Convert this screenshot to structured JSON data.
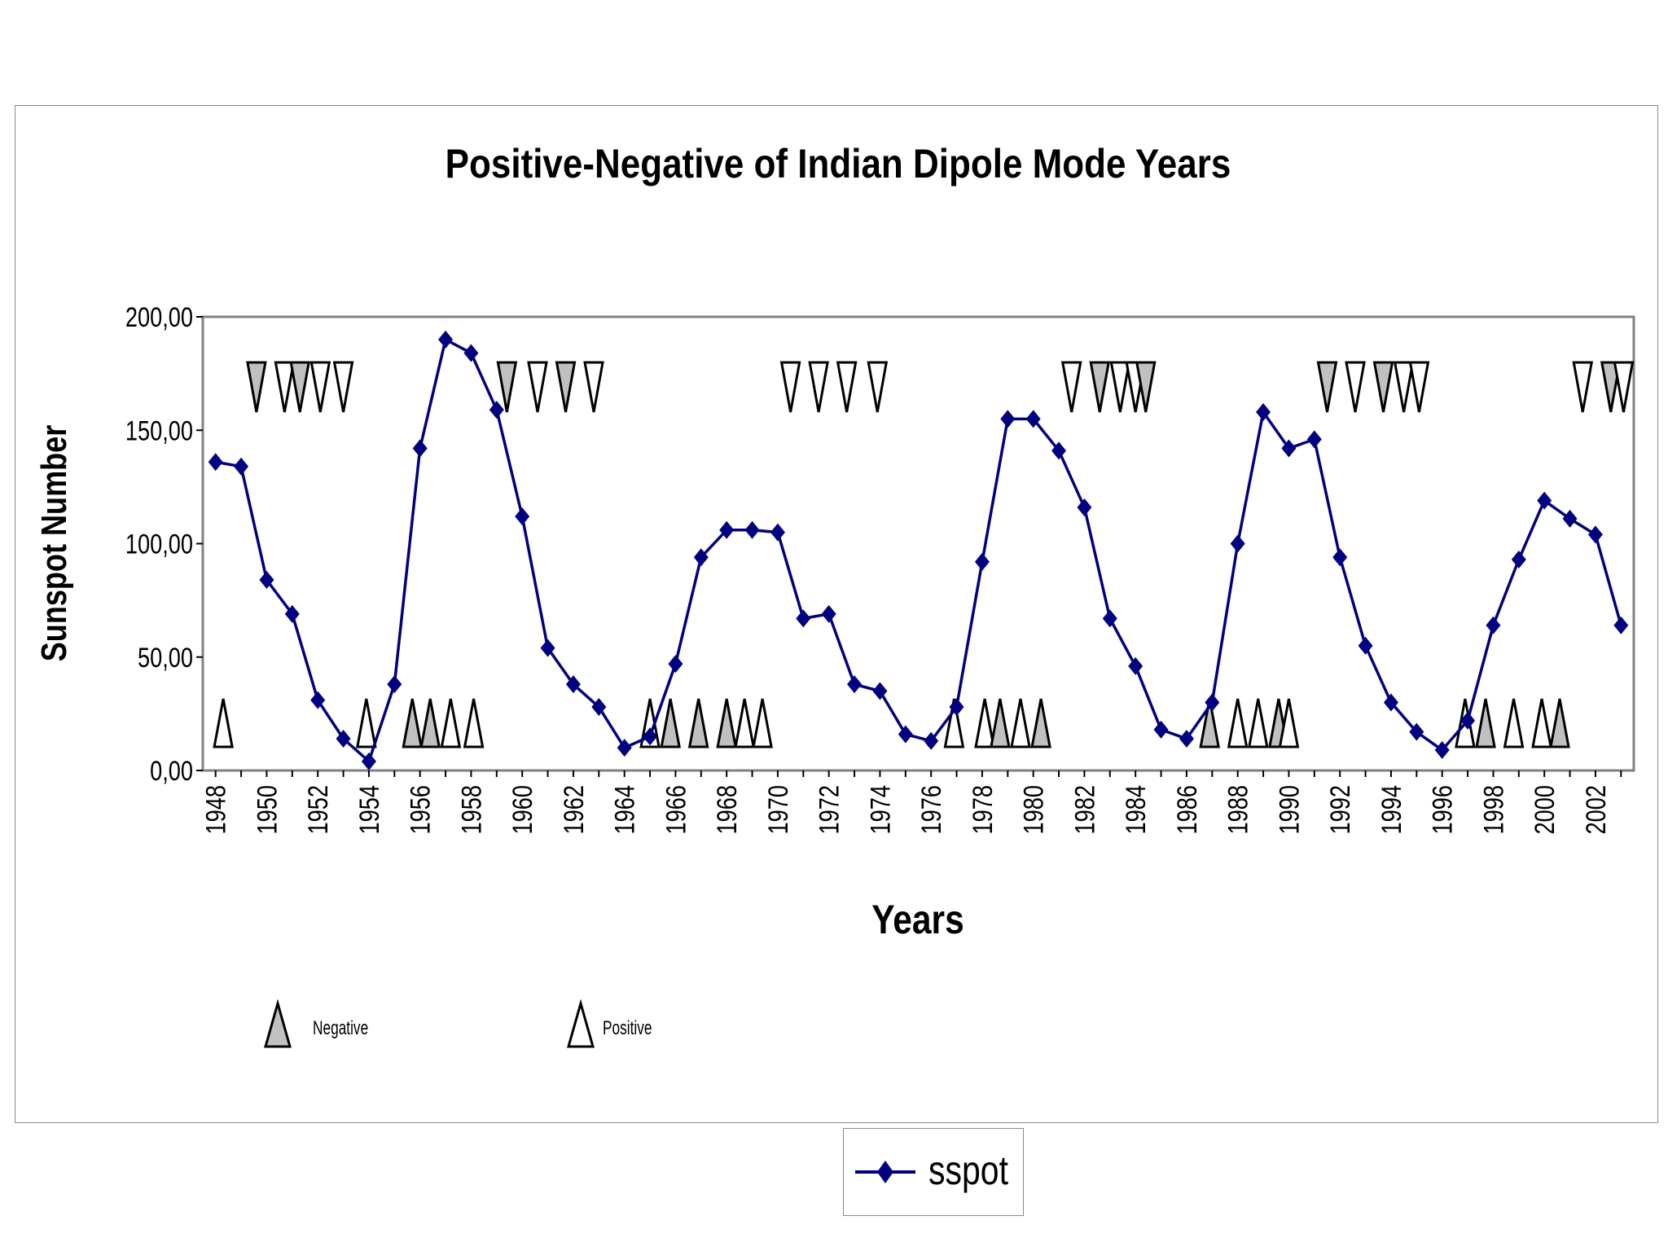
{
  "chart_data": {
    "type": "line",
    "title": "Positive-Negative of Indian Dipole Mode Years",
    "xlabel": "Years",
    "ylabel": "Sunspot Number",
    "ylim": [
      0,
      200
    ],
    "y_ticks": [
      "0,00",
      "50,00",
      "100,00",
      "150,00",
      "200,00"
    ],
    "x_ticks": [
      "1948",
      "1950",
      "1952",
      "1954",
      "1956",
      "1958",
      "1960",
      "1962",
      "1964",
      "1966",
      "1968",
      "1970",
      "1972",
      "1974",
      "1976",
      "1978",
      "1980",
      "1982",
      "1984",
      "1986",
      "1988",
      "1990",
      "1992",
      "1994",
      "1996",
      "1998",
      "2000",
      "2002"
    ],
    "x": [
      1948,
      1949,
      1950,
      1951,
      1952,
      1953,
      1954,
      1955,
      1956,
      1957,
      1958,
      1959,
      1960,
      1961,
      1962,
      1963,
      1964,
      1965,
      1966,
      1967,
      1968,
      1969,
      1970,
      1971,
      1972,
      1973,
      1974,
      1975,
      1976,
      1977,
      1978,
      1979,
      1980,
      1981,
      1982,
      1983,
      1984,
      1985,
      1986,
      1987,
      1988,
      1989,
      1990,
      1991,
      1992,
      1993,
      1994,
      1995,
      1996,
      1997,
      1998,
      1999,
      2000,
      2001,
      2002,
      2003
    ],
    "series": [
      {
        "name": "sspot",
        "color": "#000080",
        "values": [
          136,
          134,
          84,
          69,
          31,
          14,
          4,
          38,
          142,
          190,
          184,
          159,
          112,
          54,
          38,
          28,
          10,
          15,
          47,
          94,
          106,
          106,
          105,
          67,
          69,
          38,
          35,
          16,
          13,
          28,
          92,
          155,
          155,
          141,
          116,
          67,
          46,
          18,
          14,
          30,
          100,
          158,
          142,
          146,
          94,
          55,
          30,
          17,
          9,
          22,
          64,
          93,
          119,
          111,
          104,
          64
        ]
      }
    ],
    "negative_years_top": [
      1949.6,
      1950.7,
      1951.3,
      1952.1,
      1953.0,
      1959.4,
      1960.6,
      1961.7,
      1962.8,
      1970.5,
      1971.6,
      1972.7,
      1973.9,
      1981.5,
      1982.6,
      1983.4,
      1984.0,
      1984.4,
      1991.5,
      1992.6,
      1993.7,
      1994.5,
      1995.1,
      2001.5,
      2002.6,
      2003.1
    ],
    "positive_years_bottom": [
      1948.3,
      1953.9,
      1955.7,
      1956.4,
      1957.2,
      1958.1,
      1965.0,
      1965.8,
      1966.9,
      1968.0,
      1968.7,
      1969.4,
      1976.9,
      1978.1,
      1978.7,
      1979.5,
      1980.3,
      1986.9,
      1988.0,
      1988.8,
      1989.6,
      1990.0,
      1996.9,
      1997.7,
      1998.8,
      1999.9,
      2000.6
    ],
    "shaded_top": [
      1949.6,
      1951.3,
      1959.4,
      1961.7,
      1982.6,
      1984.4,
      1991.5,
      1993.7,
      2002.6
    ],
    "shaded_bottom": [
      1955.7,
      1956.4,
      1965.8,
      1966.9,
      1968.0,
      1978.7,
      1980.3,
      1986.9,
      1989.6,
      1997.7,
      2000.6
    ],
    "legend": {
      "negative_label": "Negative",
      "positive_label": "Positive",
      "series_label": "sspot"
    },
    "grid": false
  }
}
